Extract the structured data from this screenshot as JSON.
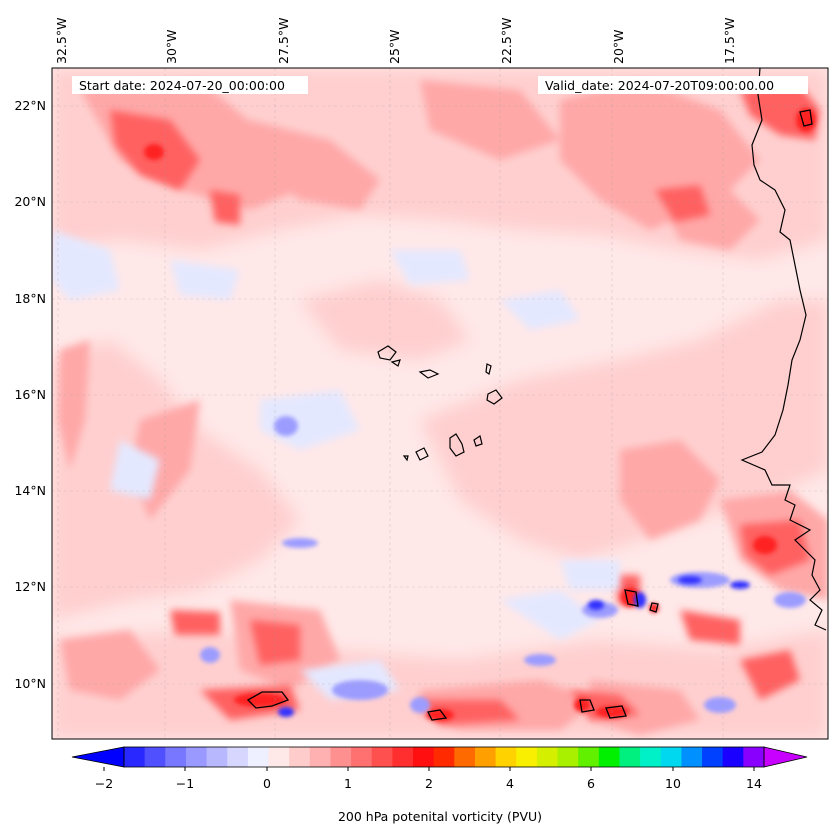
{
  "header": {
    "start_date": "Start date: 2024-07-20_00:00:00",
    "valid_date": "Valid_date: 2024-07-20T09:00:00.00"
  },
  "axes": {
    "lon_labels": [
      "32.5°W",
      "30°W",
      "27.5°W",
      "25°W",
      "22.5°W",
      "20°W",
      "17.5°W"
    ],
    "lat_labels": [
      "22°N",
      "20°N",
      "18°N",
      "16°N",
      "14°N",
      "12°N",
      "10°N"
    ]
  },
  "colorbar": {
    "label": "200 hPa potenital vorticity (PVU)",
    "tick_labels": [
      "−2",
      "−1",
      "0",
      "1",
      "2",
      "4",
      "6",
      "10",
      "14"
    ],
    "colors": [
      "#0000ff",
      "#2929ff",
      "#5050ff",
      "#7777ff",
      "#9999ff",
      "#b8b8ff",
      "#d6d6ff",
      "#eef0ff",
      "#ffe8e8",
      "#ffcccc",
      "#ffb0b0",
      "#ff9090",
      "#ff7070",
      "#ff5050",
      "#ff2f2f",
      "#ff0f0f",
      "#ff2a00",
      "#ff6a00",
      "#ffa000",
      "#ffd200",
      "#f8f000",
      "#d4f000",
      "#a8f000",
      "#60f000",
      "#00f000",
      "#00f080",
      "#00f0c8",
      "#00d8f0",
      "#0090ff",
      "#0040ff",
      "#1a00ff",
      "#8a00ff",
      "#c800ff"
    ],
    "extend_low_color": "#0000ff",
    "extend_high_color": "#c800ff"
  },
  "map_colors": {
    "background": "#ffe8e8",
    "light_pink": "#ffcfcf",
    "pink": "#ffa8a8",
    "red": "#ff6060",
    "strong_red": "#ff2020",
    "light_blue": "#e4e8ff",
    "blue": "#9c9cff",
    "strong_blue": "#3030ff",
    "coast": "#000000"
  },
  "chart_data": {
    "type": "heatmap",
    "title": "",
    "xlabel": "",
    "ylabel": "",
    "lon_range_degE": [
      -33.0,
      -15.6
    ],
    "lat_range_degN": [
      8.9,
      22.8
    ],
    "colorbar_range": [
      -2,
      15
    ],
    "colorbar_ticks": [
      -2,
      -1,
      0,
      1,
      2,
      4,
      6,
      10,
      14
    ],
    "colorbar_label": "200 hPa potenital vorticity (PVU)",
    "grid": true,
    "coastlines": true
  }
}
